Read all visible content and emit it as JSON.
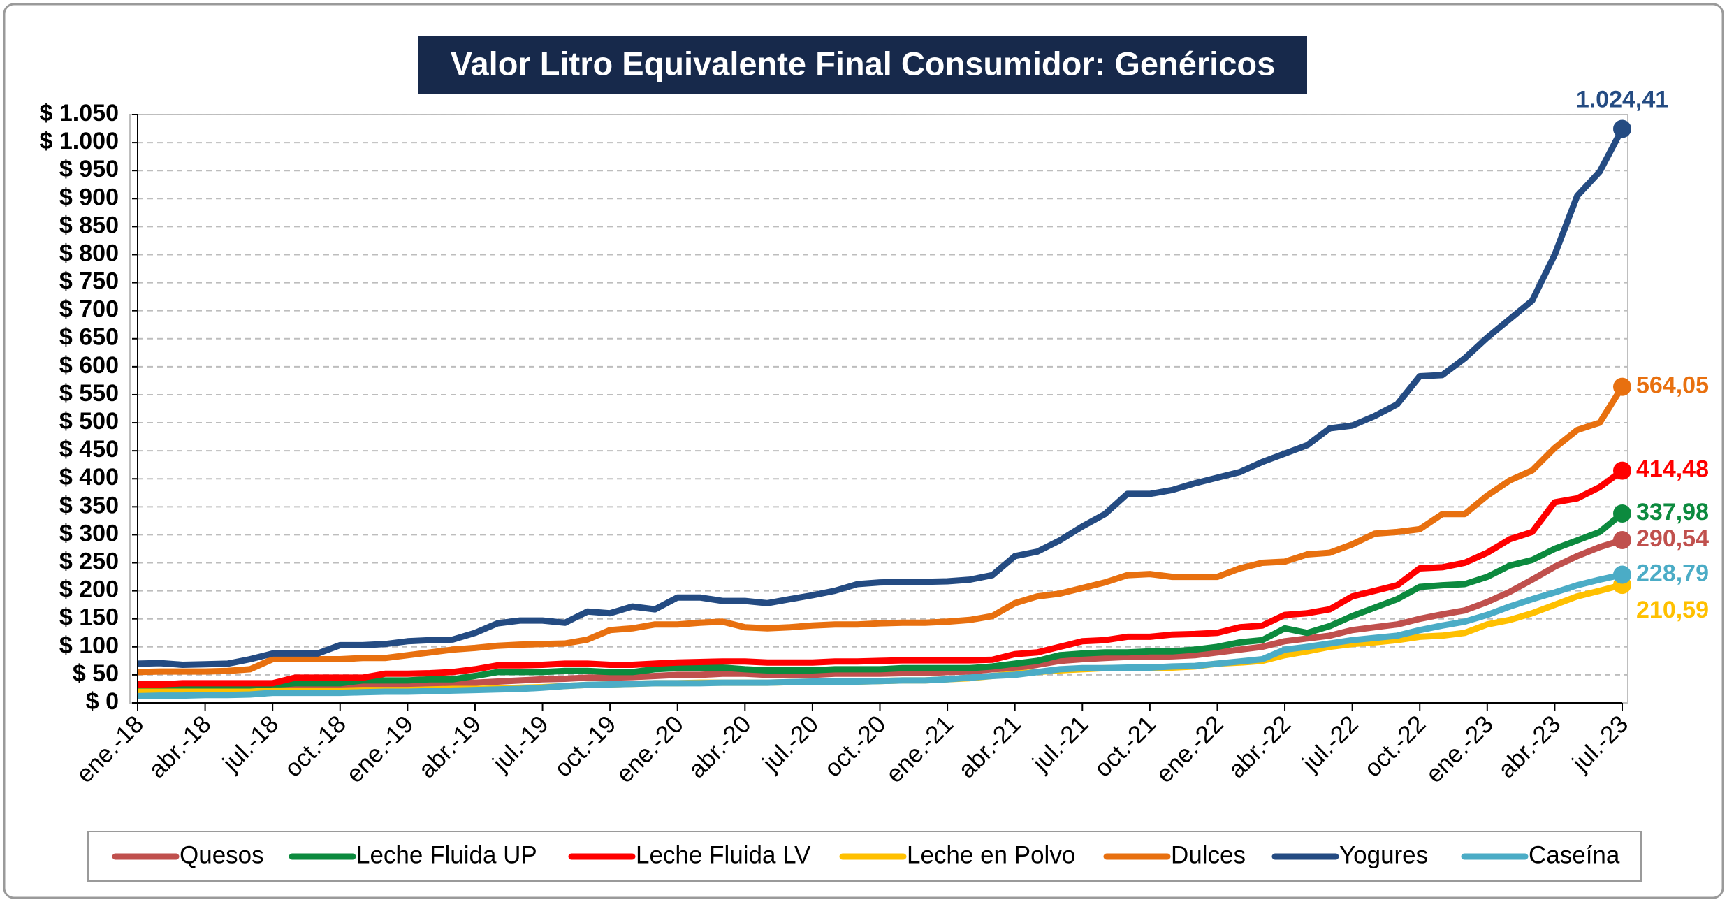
{
  "chart_data": {
    "type": "line",
    "title": "Valor Litro Equivalente Final Consumidor: Genéricos",
    "categories": [
      "ene.-18",
      null,
      null,
      "abr.-18",
      null,
      null,
      "jul.-18",
      null,
      null,
      "oct.-18",
      null,
      null,
      "ene.-19",
      null,
      null,
      "abr.-19",
      null,
      null,
      "jul.-19",
      null,
      null,
      "oct.-19",
      null,
      null,
      "ene.-20",
      null,
      null,
      "abr.-20",
      null,
      null,
      "jul.-20",
      null,
      null,
      "oct.-20",
      null,
      null,
      "ene.-21",
      null,
      null,
      "abr.-21",
      null,
      null,
      "jul.-21",
      null,
      null,
      "oct.-21",
      null,
      null,
      "ene.-22",
      null,
      null,
      "abr.-22",
      null,
      null,
      "jul.-22",
      null,
      null,
      "oct.-22",
      null,
      null,
      "ene.-23",
      null,
      null,
      "abr.-23",
      null,
      null,
      "jul.-23"
    ],
    "ylim": [
      0,
      1050
    ],
    "yticks": [
      {
        "value": 0,
        "label": "$ 0"
      },
      {
        "value": 50,
        "label": "$ 50"
      },
      {
        "value": 100,
        "label": "$ 100"
      },
      {
        "value": 150,
        "label": "$ 150"
      },
      {
        "value": 200,
        "label": "$ 200"
      },
      {
        "value": 250,
        "label": "$ 250"
      },
      {
        "value": 300,
        "label": "$ 300"
      },
      {
        "value": 350,
        "label": "$ 350"
      },
      {
        "value": 400,
        "label": "$ 400"
      },
      {
        "value": 450,
        "label": "$ 450"
      },
      {
        "value": 500,
        "label": "$ 500"
      },
      {
        "value": 550,
        "label": "$ 550"
      },
      {
        "value": 600,
        "label": "$ 600"
      },
      {
        "value": 650,
        "label": "$ 650"
      },
      {
        "value": 700,
        "label": "$ 700"
      },
      {
        "value": 750,
        "label": "$ 750"
      },
      {
        "value": 800,
        "label": "$ 800"
      },
      {
        "value": 850,
        "label": "$ 850"
      },
      {
        "value": 900,
        "label": "$ 900"
      },
      {
        "value": 950,
        "label": "$ 950"
      },
      {
        "value": 1000,
        "label": "$ 1.000"
      },
      {
        "value": 1050,
        "label": "$ 1.050"
      }
    ],
    "grid": true,
    "legend": "bottom",
    "series": [
      {
        "name": "Quesos",
        "color": "#c0504d",
        "values": [
          22,
          22,
          22,
          22,
          22,
          22,
          25,
          30,
          30,
          30,
          32,
          33,
          33,
          33,
          35,
          36,
          38,
          40,
          42,
          43,
          45,
          45,
          46,
          48,
          50,
          50,
          52,
          52,
          50,
          50,
          50,
          52,
          52,
          52,
          53,
          53,
          55,
          56,
          60,
          62,
          68,
          75,
          78,
          80,
          82,
          82,
          83,
          85,
          90,
          95,
          100,
          110,
          115,
          120,
          130,
          135,
          140,
          150,
          158,
          165,
          180,
          198,
          220,
          243,
          262,
          278,
          290.54
        ],
        "value_labels": [
          null,
          null,
          null,
          null,
          null,
          null,
          null,
          null,
          null,
          null,
          null,
          null,
          null,
          null,
          null,
          null,
          null,
          null,
          null,
          null,
          null,
          null,
          null,
          null,
          null,
          null,
          null,
          null,
          null,
          null,
          null,
          null,
          null,
          null,
          null,
          null,
          null,
          null,
          null,
          null,
          null,
          null,
          null,
          null,
          null,
          null,
          null,
          null,
          null,
          null,
          null,
          null,
          null,
          null,
          null,
          null,
          null,
          null,
          null,
          null,
          null,
          null,
          null,
          null,
          null,
          null,
          "290,54"
        ]
      },
      {
        "name": "Leche Fluida UP",
        "color": "#0c8a3e",
        "values": [
          25,
          25,
          25,
          25,
          25,
          28,
          32,
          35,
          35,
          35,
          40,
          40,
          40,
          42,
          42,
          48,
          55,
          55,
          55,
          57,
          57,
          55,
          55,
          60,
          62,
          63,
          63,
          60,
          58,
          58,
          58,
          60,
          60,
          60,
          62,
          62,
          62,
          62,
          65,
          70,
          75,
          85,
          88,
          90,
          90,
          92,
          92,
          95,
          100,
          108,
          112,
          133,
          125,
          137,
          155,
          170,
          185,
          207,
          210,
          212,
          225,
          245,
          255,
          275,
          290,
          305,
          337.98
        ],
        "value_labels": [
          null,
          null,
          null,
          null,
          null,
          null,
          null,
          null,
          null,
          null,
          null,
          null,
          null,
          null,
          null,
          null,
          null,
          null,
          null,
          null,
          null,
          null,
          null,
          null,
          null,
          null,
          null,
          null,
          null,
          null,
          null,
          null,
          null,
          null,
          null,
          null,
          null,
          null,
          null,
          null,
          null,
          null,
          null,
          null,
          null,
          null,
          null,
          null,
          null,
          null,
          null,
          null,
          null,
          null,
          null,
          null,
          null,
          null,
          null,
          null,
          null,
          null,
          null,
          null,
          null,
          null,
          "337,98"
        ]
      },
      {
        "name": "Leche Fluida LV",
        "color": "#ff0000",
        "values": [
          33,
          33,
          35,
          35,
          35,
          35,
          35,
          45,
          45,
          45,
          45,
          52,
          52,
          53,
          55,
          60,
          67,
          67,
          68,
          70,
          70,
          68,
          68,
          70,
          72,
          73,
          74,
          74,
          72,
          72,
          72,
          74,
          74,
          75,
          76,
          76,
          76,
          76,
          77,
          87,
          90,
          100,
          110,
          112,
          118,
          118,
          122,
          123,
          125,
          135,
          138,
          157,
          160,
          167,
          190,
          200,
          210,
          240,
          242,
          250,
          268,
          292,
          305,
          358,
          365,
          385,
          414.48
        ],
        "value_labels": [
          null,
          null,
          null,
          null,
          null,
          null,
          null,
          null,
          null,
          null,
          null,
          null,
          null,
          null,
          null,
          null,
          null,
          null,
          null,
          null,
          null,
          null,
          null,
          null,
          null,
          null,
          null,
          null,
          null,
          null,
          null,
          null,
          null,
          null,
          null,
          null,
          null,
          null,
          null,
          null,
          null,
          null,
          null,
          null,
          null,
          null,
          null,
          null,
          null,
          null,
          null,
          null,
          null,
          null,
          null,
          null,
          null,
          null,
          null,
          null,
          null,
          null,
          null,
          null,
          null,
          null,
          "414,48"
        ]
      },
      {
        "name": "Leche en Polvo",
        "color": "#ffc000",
        "values": [
          20,
          20,
          20,
          20,
          20,
          20,
          22,
          22,
          22,
          22,
          23,
          23,
          23,
          24,
          25,
          25,
          26,
          27,
          28,
          30,
          32,
          33,
          34,
          35,
          35,
          36,
          36,
          36,
          36,
          37,
          38,
          38,
          38,
          39,
          40,
          40,
          42,
          44,
          48,
          52,
          55,
          58,
          60,
          62,
          62,
          62,
          63,
          65,
          70,
          72,
          75,
          85,
          92,
          100,
          105,
          108,
          112,
          118,
          120,
          125,
          140,
          148,
          160,
          175,
          190,
          200,
          210.59
        ],
        "value_labels": [
          null,
          null,
          null,
          null,
          null,
          null,
          null,
          null,
          null,
          null,
          null,
          null,
          null,
          null,
          null,
          null,
          null,
          null,
          null,
          null,
          null,
          null,
          null,
          null,
          null,
          null,
          null,
          null,
          null,
          null,
          null,
          null,
          null,
          null,
          null,
          null,
          null,
          null,
          null,
          null,
          null,
          null,
          null,
          null,
          null,
          null,
          null,
          null,
          null,
          null,
          null,
          null,
          null,
          null,
          null,
          null,
          null,
          null,
          null,
          null,
          null,
          null,
          null,
          null,
          null,
          null,
          "210,59"
        ]
      },
      {
        "name": "Dulces",
        "color": "#e8700f",
        "values": [
          55,
          56,
          56,
          56,
          57,
          60,
          78,
          78,
          78,
          78,
          80,
          80,
          85,
          90,
          95,
          98,
          102,
          104,
          105,
          106,
          113,
          130,
          133,
          140,
          140,
          143,
          145,
          135,
          133,
          135,
          138,
          140,
          140,
          142,
          143,
          143,
          145,
          148,
          155,
          178,
          190,
          195,
          205,
          215,
          228,
          230,
          225,
          225,
          225,
          240,
          250,
          252,
          265,
          268,
          283,
          302,
          305,
          310,
          337,
          337,
          370,
          397,
          415,
          455,
          487,
          500,
          564.05
        ],
        "value_labels": [
          null,
          null,
          null,
          null,
          null,
          null,
          null,
          null,
          null,
          null,
          null,
          null,
          null,
          null,
          null,
          null,
          null,
          null,
          null,
          null,
          null,
          null,
          null,
          null,
          null,
          null,
          null,
          null,
          null,
          null,
          null,
          null,
          null,
          null,
          null,
          null,
          null,
          null,
          null,
          null,
          null,
          null,
          null,
          null,
          null,
          null,
          null,
          null,
          null,
          null,
          null,
          null,
          null,
          null,
          null,
          null,
          null,
          null,
          null,
          null,
          null,
          null,
          null,
          null,
          null,
          null,
          "564,05"
        ]
      },
      {
        "name": "Yogures",
        "color": "#244b82",
        "values": [
          70,
          71,
          68,
          69,
          70,
          78,
          88,
          88,
          88,
          103,
          103,
          105,
          110,
          112,
          113,
          125,
          142,
          147,
          147,
          143,
          163,
          160,
          172,
          167,
          188,
          188,
          182,
          182,
          178,
          185,
          192,
          200,
          212,
          215,
          216,
          216,
          217,
          220,
          228,
          262,
          270,
          290,
          315,
          337,
          373,
          373,
          380,
          392,
          402,
          412,
          430,
          445,
          460,
          490,
          495,
          512,
          533,
          583,
          585,
          615,
          652,
          685,
          718,
          800,
          905,
          948,
          1024.41
        ],
        "value_labels": [
          null,
          null,
          null,
          null,
          null,
          null,
          null,
          null,
          null,
          null,
          null,
          null,
          null,
          null,
          null,
          null,
          null,
          null,
          null,
          null,
          null,
          null,
          null,
          null,
          null,
          null,
          null,
          null,
          null,
          null,
          null,
          null,
          null,
          null,
          null,
          null,
          null,
          null,
          null,
          null,
          null,
          null,
          null,
          null,
          null,
          null,
          null,
          null,
          null,
          null,
          null,
          null,
          null,
          null,
          null,
          null,
          null,
          null,
          null,
          null,
          null,
          null,
          null,
          null,
          null,
          null,
          "1.024,41"
        ]
      },
      {
        "name": "Caseína",
        "color": "#4bacc6",
        "values": [
          12,
          13,
          13,
          14,
          14,
          15,
          18,
          18,
          18,
          18,
          19,
          20,
          20,
          21,
          22,
          23,
          24,
          25,
          27,
          30,
          32,
          33,
          34,
          35,
          35,
          35,
          36,
          36,
          36,
          37,
          38,
          38,
          38,
          39,
          40,
          40,
          42,
          45,
          48,
          50,
          55,
          60,
          62,
          62,
          63,
          63,
          65,
          66,
          70,
          74,
          78,
          95,
          100,
          106,
          112,
          116,
          120,
          130,
          138,
          145,
          157,
          172,
          185,
          197,
          210,
          220,
          228.79
        ],
        "value_labels": [
          null,
          null,
          null,
          null,
          null,
          null,
          null,
          null,
          null,
          null,
          null,
          null,
          null,
          null,
          null,
          null,
          null,
          null,
          null,
          null,
          null,
          null,
          null,
          null,
          null,
          null,
          null,
          null,
          null,
          null,
          null,
          null,
          null,
          null,
          null,
          null,
          null,
          null,
          null,
          null,
          null,
          null,
          null,
          null,
          null,
          null,
          null,
          null,
          null,
          null,
          null,
          null,
          null,
          null,
          null,
          null,
          null,
          null,
          null,
          null,
          null,
          null,
          null,
          null,
          null,
          null,
          "228,79"
        ]
      }
    ]
  }
}
